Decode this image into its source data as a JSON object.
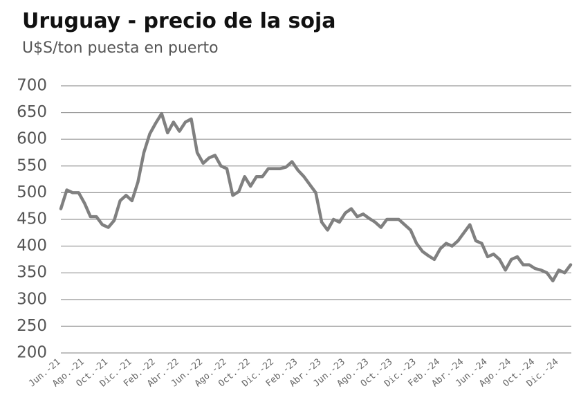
{
  "chart_data": {
    "type": "line",
    "title": "Uruguay - precio de la soja",
    "subtitle": "U$S/ton puesta en puerto",
    "categories": [
      "Jun.-21",
      null,
      null,
      null,
      "Ago.-21",
      null,
      null,
      null,
      "Oct.-21",
      null,
      null,
      null,
      "Dic.-21",
      null,
      null,
      null,
      "Feb.-22",
      null,
      null,
      null,
      "Abr.-22",
      null,
      null,
      null,
      "Jun.-22",
      null,
      null,
      null,
      "Ago.-22",
      null,
      null,
      null,
      "Oct.-22",
      null,
      null,
      null,
      "Dic.-22",
      null,
      null,
      null,
      "Feb.-23",
      null,
      null,
      null,
      "Abr.-23",
      null,
      null,
      null,
      "Jun.-23",
      null,
      null,
      null,
      "Ago.-23",
      null,
      null,
      null,
      "Oct.-23",
      null,
      null,
      null,
      "Dic.-23",
      null,
      null,
      null,
      "Feb.-24",
      null,
      null,
      null,
      "Abr.-24",
      null,
      null,
      null,
      "Jun.-24",
      null,
      null,
      null,
      "Ago.-24",
      null,
      null,
      null,
      "Oct.-24",
      null,
      null,
      null,
      "Dic.-24",
      null,
      null
    ],
    "values": [
      470,
      505,
      500,
      500,
      480,
      455,
      455,
      440,
      435,
      448,
      485,
      495,
      485,
      520,
      575,
      610,
      630,
      648,
      612,
      632,
      615,
      632,
      638,
      575,
      555,
      565,
      570,
      550,
      545,
      495,
      502,
      530,
      512,
      530,
      530,
      545,
      545,
      545,
      548,
      558,
      542,
      530,
      515,
      500,
      445,
      430,
      450,
      445,
      462,
      470,
      455,
      460,
      452,
      445,
      435,
      450,
      450,
      450,
      440,
      430,
      405,
      390,
      382,
      375,
      395,
      405,
      400,
      410,
      425,
      440,
      410,
      405,
      380,
      385,
      375,
      355,
      375,
      380,
      365,
      365,
      358,
      355,
      350,
      335,
      355,
      350,
      365
    ],
    "color": "#808080",
    "ylim": [
      200,
      700
    ],
    "yticks": [
      200,
      250,
      300,
      350,
      400,
      450,
      500,
      550,
      600,
      650,
      700
    ],
    "grid": true
  }
}
